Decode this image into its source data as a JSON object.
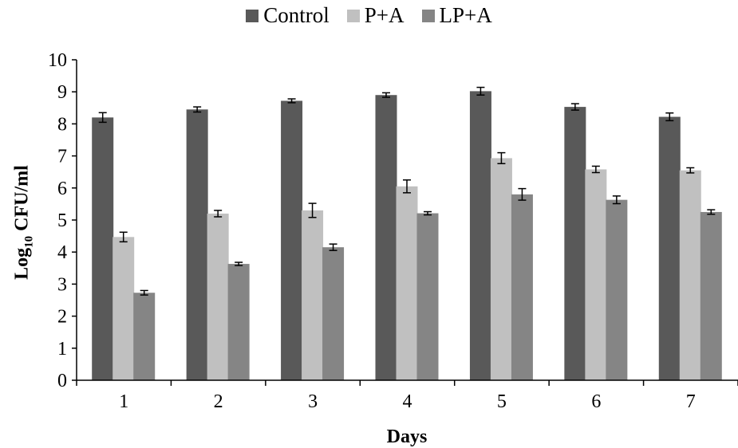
{
  "chart_data": {
    "type": "bar",
    "categories": [
      "1",
      "2",
      "3",
      "4",
      "5",
      "6",
      "7"
    ],
    "series": [
      {
        "name": "Control",
        "color": "#595959",
        "values": [
          8.2,
          8.45,
          8.72,
          8.9,
          9.02,
          8.53,
          8.22
        ],
        "errors": [
          0.15,
          0.08,
          0.06,
          0.07,
          0.12,
          0.1,
          0.12
        ]
      },
      {
        "name": "P+A",
        "color": "#c0c0c0",
        "values": [
          4.47,
          5.2,
          5.3,
          6.05,
          6.93,
          6.58,
          6.55
        ],
        "errors": [
          0.15,
          0.1,
          0.22,
          0.2,
          0.17,
          0.1,
          0.08
        ]
      },
      {
        "name": "LP+A",
        "color": "#858585",
        "values": [
          2.73,
          3.63,
          4.15,
          5.21,
          5.8,
          5.63,
          5.25
        ],
        "errors": [
          0.07,
          0.05,
          0.1,
          0.05,
          0.18,
          0.12,
          0.07
        ]
      }
    ],
    "ylim": [
      0,
      10
    ],
    "yticks": [
      "0",
      "1",
      "2",
      "3",
      "4",
      "5",
      "6",
      "7",
      "8",
      "9",
      "10"
    ],
    "xlabel": "Days",
    "ylabel": {
      "main": "Log",
      "subscript": "10",
      "rest": " CFU/ml"
    },
    "legend_position": "top-center",
    "grid": false
  }
}
